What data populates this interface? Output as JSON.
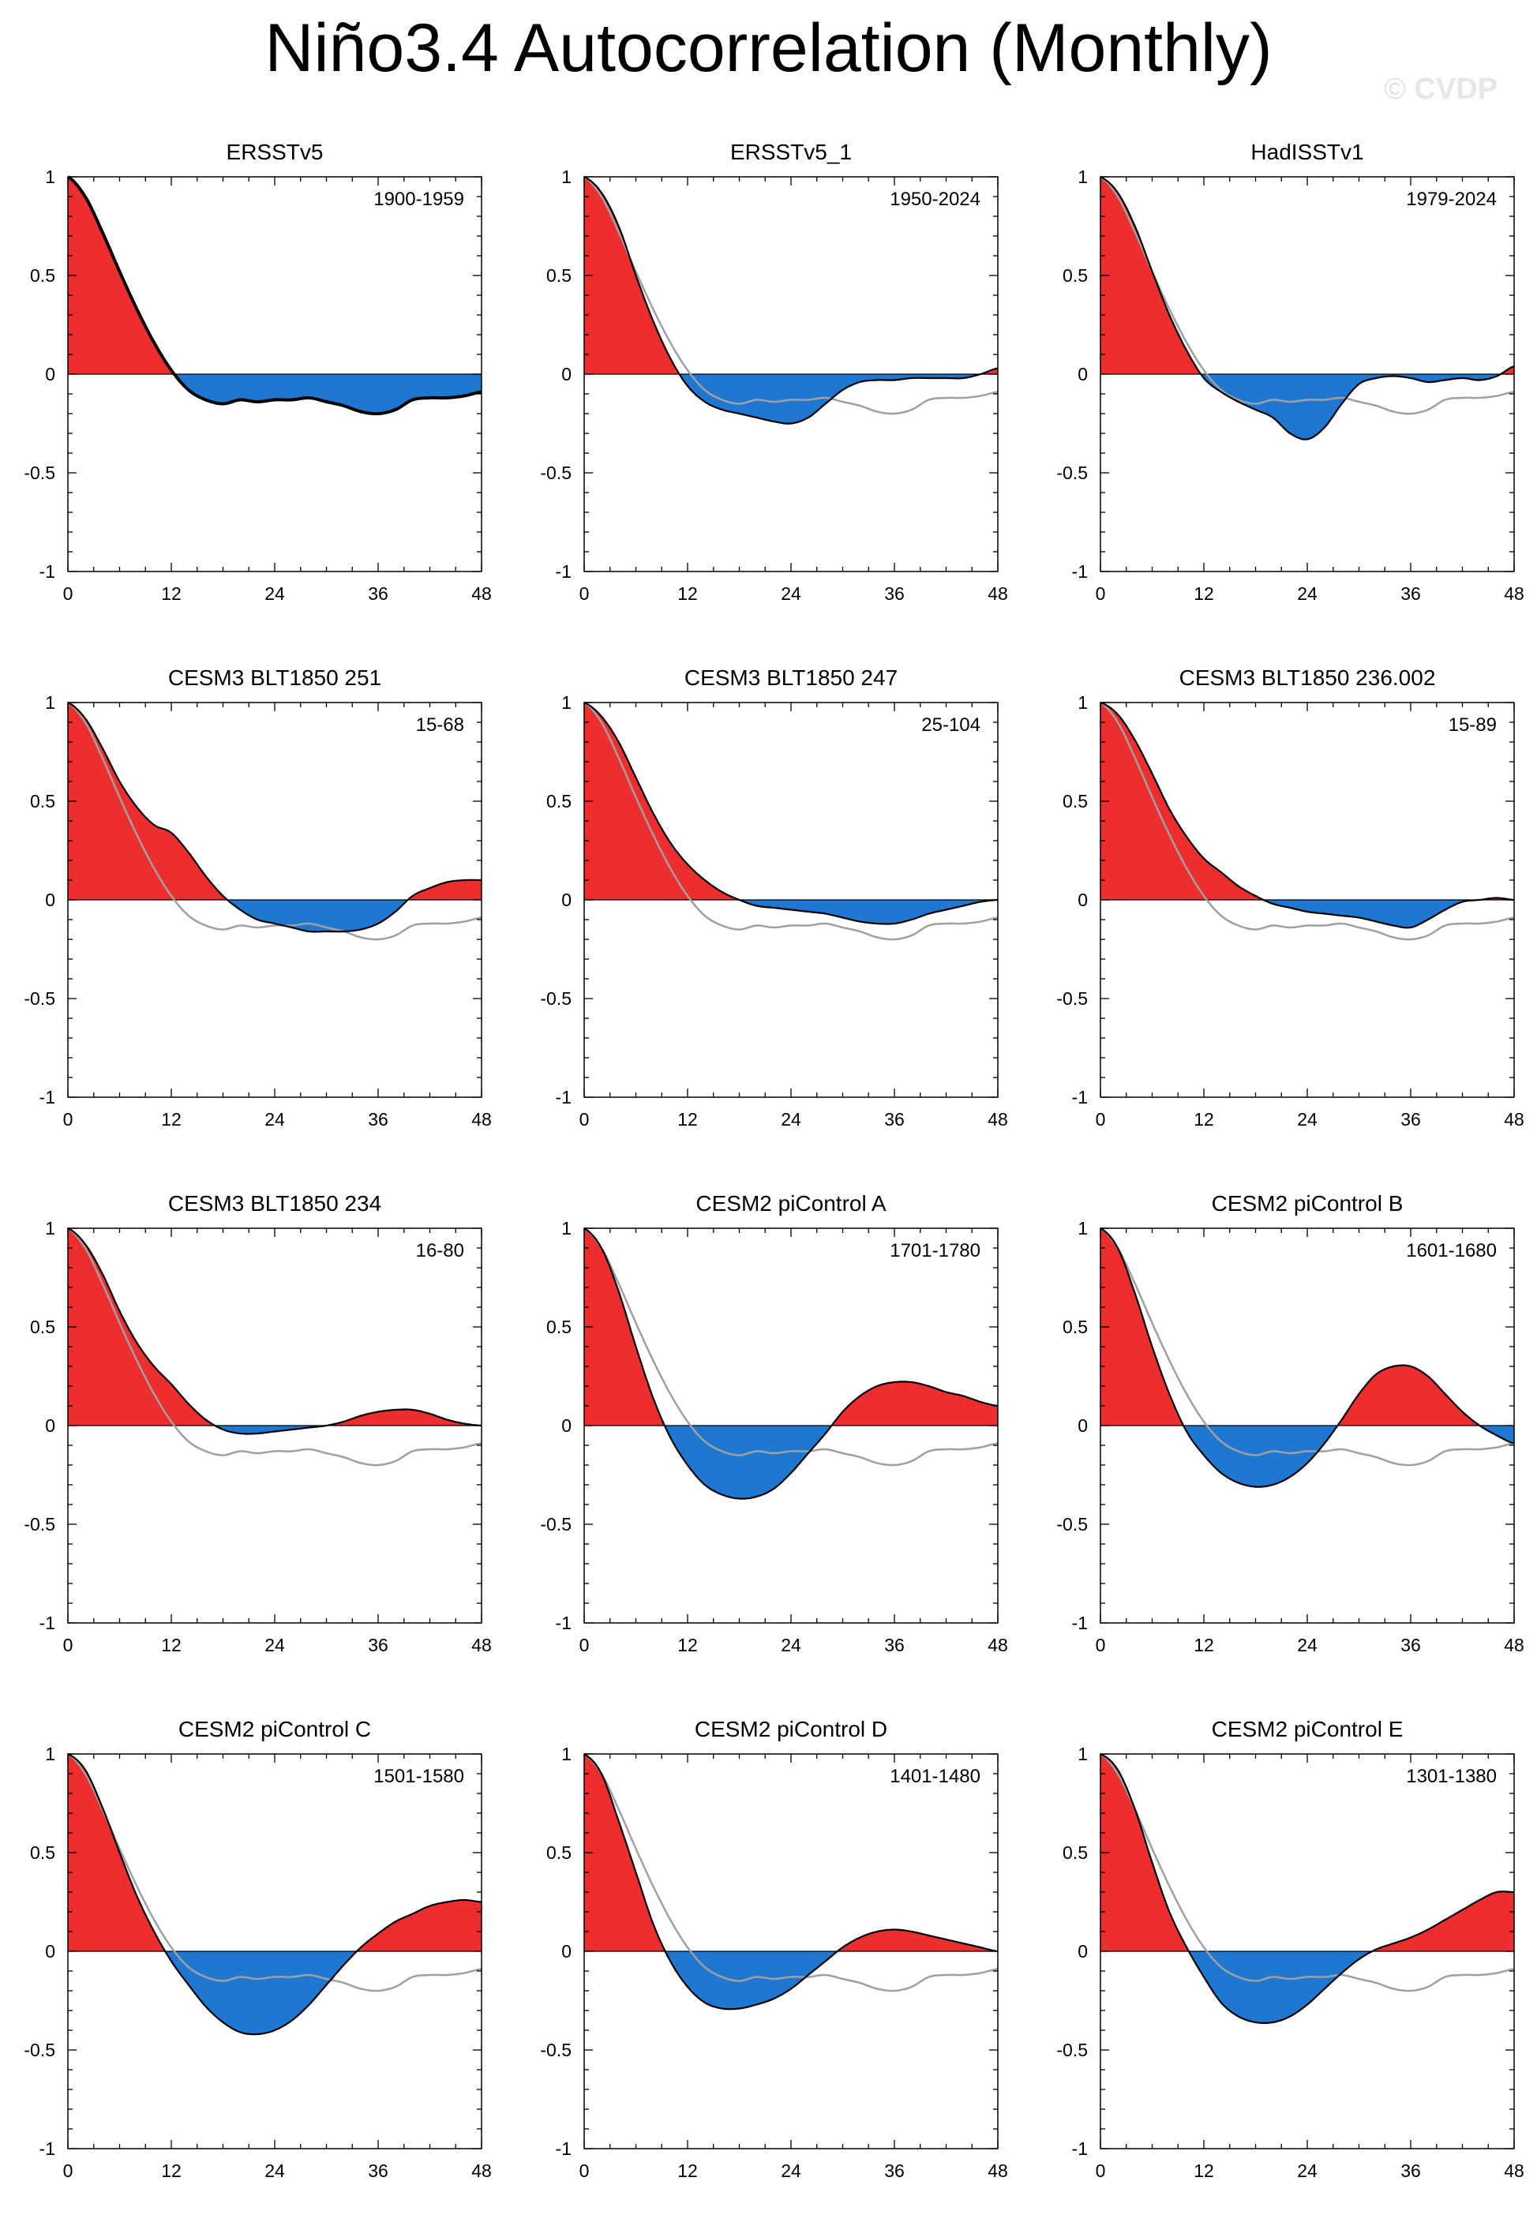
{
  "title": "Niño3.4 Autocorrelation (Monthly)",
  "watermark": "© CVDP",
  "colors": {
    "positive": "#ee2e2e",
    "negative": "#1e78d2",
    "line": "#000000",
    "reference": "#a0a0a0"
  },
  "chart_data": {
    "type": "area",
    "xlabel": "",
    "ylabel": "",
    "xlim": [
      0,
      48
    ],
    "ylim": [
      -1,
      1
    ],
    "xticks": [
      "0",
      "12",
      "24",
      "36",
      "48"
    ],
    "yticks": [
      "1",
      "0.5",
      "0",
      "-0.5",
      "-1"
    ],
    "reference_series": {
      "name": "ERSSTv5 1900-1959",
      "lags": [
        0,
        2,
        4,
        6,
        8,
        10,
        12,
        14,
        16,
        18,
        20,
        22,
        24,
        26,
        28,
        30,
        32,
        34,
        36,
        38,
        40,
        42,
        44,
        46,
        48
      ],
      "values": [
        1.0,
        0.9,
        0.72,
        0.52,
        0.33,
        0.16,
        0.02,
        -0.08,
        -0.13,
        -0.15,
        -0.13,
        -0.14,
        -0.13,
        -0.13,
        -0.12,
        -0.14,
        -0.16,
        -0.19,
        -0.2,
        -0.18,
        -0.13,
        -0.12,
        -0.12,
        -0.11,
        -0.09
      ]
    },
    "panels": [
      {
        "title": "ERSSTv5",
        "period": "1900-1959",
        "is_reference": true,
        "lags": [
          0,
          2,
          4,
          6,
          8,
          10,
          12,
          14,
          16,
          18,
          20,
          22,
          24,
          26,
          28,
          30,
          32,
          34,
          36,
          38,
          40,
          42,
          44,
          46,
          48
        ],
        "values": [
          1.0,
          0.9,
          0.72,
          0.52,
          0.33,
          0.16,
          0.02,
          -0.08,
          -0.13,
          -0.15,
          -0.13,
          -0.14,
          -0.13,
          -0.13,
          -0.12,
          -0.14,
          -0.16,
          -0.19,
          -0.2,
          -0.18,
          -0.13,
          -0.12,
          -0.12,
          -0.11,
          -0.09
        ]
      },
      {
        "title": "ERSSTv5_1",
        "period": "1950-2024",
        "lags": [
          0,
          2,
          4,
          6,
          8,
          10,
          12,
          14,
          16,
          18,
          20,
          22,
          24,
          26,
          28,
          30,
          32,
          34,
          36,
          38,
          40,
          42,
          44,
          46,
          48
        ],
        "values": [
          1.0,
          0.92,
          0.75,
          0.5,
          0.27,
          0.08,
          -0.06,
          -0.14,
          -0.18,
          -0.2,
          -0.22,
          -0.24,
          -0.25,
          -0.22,
          -0.15,
          -0.08,
          -0.04,
          -0.03,
          -0.03,
          -0.02,
          -0.02,
          -0.02,
          -0.02,
          0.0,
          0.03
        ]
      },
      {
        "title": "HadISSTv1",
        "period": "1979-2024",
        "lags": [
          0,
          2,
          4,
          6,
          8,
          10,
          12,
          14,
          16,
          18,
          20,
          22,
          24,
          26,
          28,
          30,
          32,
          34,
          36,
          38,
          40,
          42,
          44,
          46,
          48
        ],
        "values": [
          1.0,
          0.92,
          0.75,
          0.52,
          0.3,
          0.12,
          -0.02,
          -0.09,
          -0.14,
          -0.18,
          -0.22,
          -0.3,
          -0.33,
          -0.27,
          -0.15,
          -0.05,
          -0.02,
          -0.01,
          -0.02,
          -0.04,
          -0.03,
          -0.02,
          -0.03,
          -0.01,
          0.04
        ]
      },
      {
        "title": "CESM3 BLT1850 251",
        "period": "15-68",
        "lags": [
          0,
          2,
          4,
          6,
          8,
          10,
          12,
          14,
          16,
          18,
          20,
          22,
          24,
          26,
          28,
          30,
          32,
          34,
          36,
          38,
          40,
          42,
          44,
          46,
          48
        ],
        "values": [
          1.0,
          0.92,
          0.77,
          0.6,
          0.47,
          0.38,
          0.34,
          0.24,
          0.12,
          0.02,
          -0.05,
          -0.1,
          -0.12,
          -0.14,
          -0.16,
          -0.16,
          -0.16,
          -0.15,
          -0.12,
          -0.06,
          0.02,
          0.06,
          0.09,
          0.1,
          0.1
        ]
      },
      {
        "title": "CESM3 BLT1850 247",
        "period": "25-104",
        "lags": [
          0,
          2,
          4,
          6,
          8,
          10,
          12,
          14,
          16,
          18,
          20,
          22,
          24,
          26,
          28,
          30,
          32,
          34,
          36,
          38,
          40,
          42,
          44,
          46,
          48
        ],
        "values": [
          1.0,
          0.93,
          0.8,
          0.62,
          0.44,
          0.29,
          0.18,
          0.1,
          0.04,
          0.0,
          -0.03,
          -0.04,
          -0.05,
          -0.06,
          -0.07,
          -0.09,
          -0.11,
          -0.12,
          -0.12,
          -0.1,
          -0.07,
          -0.05,
          -0.03,
          -0.01,
          0.0
        ]
      },
      {
        "title": "CESM3 BLT1850 236.002",
        "period": "15-89",
        "lags": [
          0,
          2,
          4,
          6,
          8,
          10,
          12,
          14,
          16,
          18,
          20,
          22,
          24,
          26,
          28,
          30,
          32,
          34,
          36,
          38,
          40,
          42,
          44,
          46,
          48
        ],
        "values": [
          1.0,
          0.94,
          0.81,
          0.64,
          0.46,
          0.32,
          0.21,
          0.14,
          0.07,
          0.02,
          -0.02,
          -0.04,
          -0.06,
          -0.07,
          -0.08,
          -0.09,
          -0.11,
          -0.13,
          -0.14,
          -0.1,
          -0.05,
          -0.01,
          0.0,
          0.01,
          0.0
        ]
      },
      {
        "title": "CESM3 BLT1850 234",
        "period": "16-80",
        "lags": [
          0,
          2,
          4,
          6,
          8,
          10,
          12,
          14,
          16,
          18,
          20,
          22,
          24,
          26,
          28,
          30,
          32,
          34,
          36,
          38,
          40,
          42,
          44,
          46,
          48
        ],
        "values": [
          1.0,
          0.92,
          0.77,
          0.58,
          0.42,
          0.3,
          0.21,
          0.11,
          0.03,
          -0.02,
          -0.04,
          -0.04,
          -0.03,
          -0.02,
          -0.01,
          0.0,
          0.02,
          0.05,
          0.07,
          0.08,
          0.08,
          0.06,
          0.03,
          0.01,
          0.0
        ]
      },
      {
        "title": "CESM2 piControl A",
        "period": "1701-1780",
        "lags": [
          0,
          2,
          4,
          6,
          8,
          10,
          12,
          14,
          16,
          18,
          20,
          22,
          24,
          26,
          28,
          30,
          32,
          34,
          36,
          38,
          40,
          42,
          44,
          46,
          48
        ],
        "values": [
          1.0,
          0.9,
          0.68,
          0.4,
          0.14,
          -0.06,
          -0.2,
          -0.3,
          -0.35,
          -0.37,
          -0.36,
          -0.32,
          -0.24,
          -0.14,
          -0.04,
          0.07,
          0.15,
          0.2,
          0.22,
          0.22,
          0.2,
          0.17,
          0.15,
          0.12,
          0.1
        ]
      },
      {
        "title": "CESM2 piControl B",
        "period": "1601-1680",
        "lags": [
          0,
          2,
          4,
          6,
          8,
          10,
          12,
          14,
          16,
          18,
          20,
          22,
          24,
          26,
          28,
          30,
          32,
          34,
          36,
          38,
          40,
          42,
          44,
          46,
          48
        ],
        "values": [
          1.0,
          0.9,
          0.67,
          0.4,
          0.16,
          -0.03,
          -0.15,
          -0.24,
          -0.29,
          -0.31,
          -0.3,
          -0.26,
          -0.19,
          -0.09,
          0.03,
          0.16,
          0.26,
          0.3,
          0.3,
          0.25,
          0.16,
          0.07,
          0.0,
          -0.05,
          -0.09
        ]
      },
      {
        "title": "CESM2 piControl C",
        "period": "1501-1580",
        "lags": [
          0,
          2,
          4,
          6,
          8,
          10,
          12,
          14,
          16,
          18,
          20,
          22,
          24,
          26,
          28,
          30,
          32,
          34,
          36,
          38,
          40,
          42,
          44,
          46,
          48
        ],
        "values": [
          1.0,
          0.92,
          0.73,
          0.5,
          0.28,
          0.1,
          -0.05,
          -0.17,
          -0.28,
          -0.36,
          -0.41,
          -0.42,
          -0.4,
          -0.35,
          -0.27,
          -0.17,
          -0.07,
          0.02,
          0.09,
          0.15,
          0.19,
          0.23,
          0.25,
          0.26,
          0.25
        ]
      },
      {
        "title": "CESM2 piControl D",
        "period": "1401-1480",
        "lags": [
          0,
          2,
          4,
          6,
          8,
          10,
          12,
          14,
          16,
          18,
          20,
          22,
          24,
          26,
          28,
          30,
          32,
          34,
          36,
          38,
          40,
          42,
          44,
          46,
          48
        ],
        "values": [
          1.0,
          0.9,
          0.66,
          0.4,
          0.14,
          -0.05,
          -0.18,
          -0.26,
          -0.29,
          -0.29,
          -0.27,
          -0.24,
          -0.19,
          -0.12,
          -0.05,
          0.02,
          0.07,
          0.1,
          0.11,
          0.1,
          0.08,
          0.06,
          0.04,
          0.02,
          0.0
        ]
      },
      {
        "title": "CESM2 piControl E",
        "period": "1301-1380",
        "lags": [
          0,
          2,
          4,
          6,
          8,
          10,
          12,
          14,
          16,
          18,
          20,
          22,
          24,
          26,
          28,
          30,
          32,
          34,
          36,
          38,
          40,
          42,
          44,
          46,
          48
        ],
        "values": [
          1.0,
          0.92,
          0.72,
          0.45,
          0.2,
          0.02,
          -0.13,
          -0.26,
          -0.33,
          -0.36,
          -0.36,
          -0.33,
          -0.27,
          -0.19,
          -0.11,
          -0.04,
          0.01,
          0.04,
          0.07,
          0.11,
          0.16,
          0.21,
          0.26,
          0.3,
          0.3
        ]
      }
    ]
  }
}
